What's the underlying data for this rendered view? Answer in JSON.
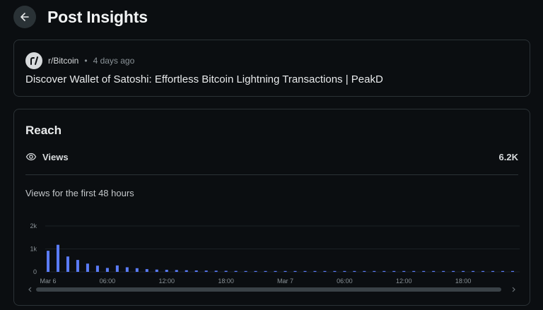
{
  "header": {
    "title": "Post Insights"
  },
  "post": {
    "subreddit": "r/Bitcoin",
    "separator": "•",
    "time_ago": "4 days ago",
    "title": "Discover Wallet of Satoshi: Effortless Bitcoin Lightning Transactions | PeakD"
  },
  "reach": {
    "title": "Reach",
    "views_label": "Views",
    "views_value": "6.2K",
    "chart_caption": "Views for the first 48 hours"
  },
  "colors": {
    "bar": "#5b7cfa",
    "background": "#0b0e11",
    "border": "#2b3236"
  },
  "chart_data": {
    "type": "bar",
    "xlabel": "",
    "ylabel": "",
    "ylim": [
      0,
      2000
    ],
    "y_ticks": [
      "2k",
      "1k",
      "0"
    ],
    "x_tick_labels": [
      "Mar 6",
      "06:00",
      "12:00",
      "18:00",
      "Mar 7",
      "06:00",
      "12:00",
      "18:00"
    ],
    "series": [
      {
        "values": [
          920,
          1180,
          670,
          520,
          360,
          270,
          170,
          280,
          200,
          160,
          120,
          100,
          90,
          80,
          70,
          60,
          55,
          50,
          45,
          40,
          35,
          30,
          25,
          22,
          20,
          18,
          16,
          14,
          12,
          10,
          8,
          6,
          5,
          4,
          3,
          2,
          2,
          1,
          1,
          1,
          1,
          1,
          1,
          1,
          1,
          1,
          1,
          1
        ]
      }
    ]
  }
}
